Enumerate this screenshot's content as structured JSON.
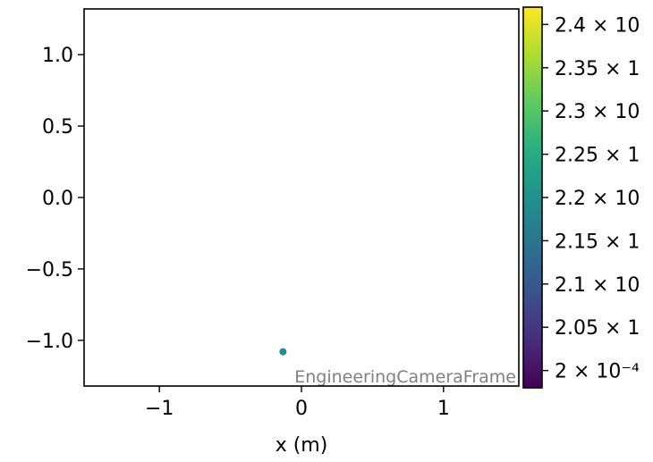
{
  "chart_data": {
    "type": "scatter",
    "title": "",
    "xlabel": "x  (m)",
    "ylabel": "",
    "xlim": [
      -1.53,
      1.53
    ],
    "ylim": [
      -1.32,
      1.32
    ],
    "x_ticks": [
      -1,
      0,
      1
    ],
    "x_tick_labels": [
      "−1",
      "0",
      "1"
    ],
    "y_ticks": [
      1.0,
      0.5,
      0.0,
      -0.5,
      -1.0
    ],
    "y_tick_labels": [
      "1.0",
      "0.5",
      "0.0",
      "−0.5",
      "−1.0"
    ],
    "grid": false,
    "points": [
      {
        "x": -0.13,
        "y": -1.08,
        "value": 0.000222
      }
    ],
    "frame_annotation": "EngineeringCameraFrame",
    "colorbar": {
      "colormap": "viridis",
      "range": [
        0.000198,
        0.000242
      ],
      "ticks": [
        0.0002,
        0.000205,
        0.00021,
        0.000215,
        0.00022,
        0.000225,
        0.00023,
        0.000235,
        0.00024
      ],
      "tick_labels": [
        "2 × 10⁻⁴",
        "2.05 × 1",
        "2.1 × 10",
        "2.15 × 1",
        "2.2 × 10",
        "2.25 × 1",
        "2.3 × 10",
        "2.35 × 1",
        "2.4 × 10"
      ]
    },
    "colors": {
      "point": "#21918c",
      "annotation": "#808080"
    }
  }
}
